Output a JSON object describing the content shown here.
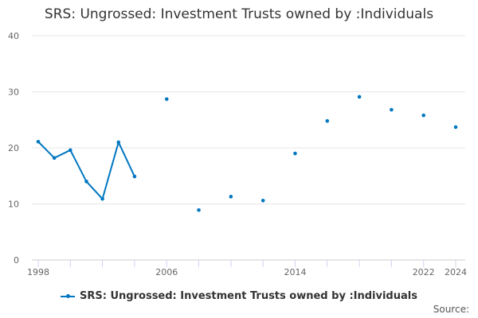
{
  "chart_data": {
    "type": "line",
    "title": "SRS: Ungrossed: Investment Trusts owned by :Individuals",
    "xlabel": "",
    "ylabel": "",
    "x": [
      1998,
      1999,
      2000,
      2001,
      2002,
      2003,
      2004,
      2005,
      2006,
      2007,
      2008,
      2009,
      2010,
      2011,
      2012,
      2013,
      2014,
      2015,
      2016,
      2017,
      2018,
      2019,
      2020,
      2021,
      2022,
      2023,
      2024
    ],
    "values": [
      21.1,
      18.2,
      19.6,
      14.0,
      10.9,
      21.0,
      14.9,
      null,
      28.7,
      null,
      8.9,
      null,
      11.3,
      null,
      10.6,
      null,
      19.0,
      null,
      24.8,
      null,
      29.1,
      null,
      26.8,
      null,
      25.8,
      null,
      23.7
    ],
    "ylim": [
      0,
      40
    ],
    "yticks": [
      "0",
      "10",
      "20",
      "30",
      "40"
    ],
    "xtick_labels": [
      "1998",
      "2006",
      "2014",
      "2022",
      "2024"
    ],
    "grid": true,
    "legend": {
      "label": "SRS: Ungrossed: Investment Trusts owned by :Individuals",
      "placement": "bottom"
    },
    "color": "#0077c0"
  },
  "source_label": "Source:"
}
